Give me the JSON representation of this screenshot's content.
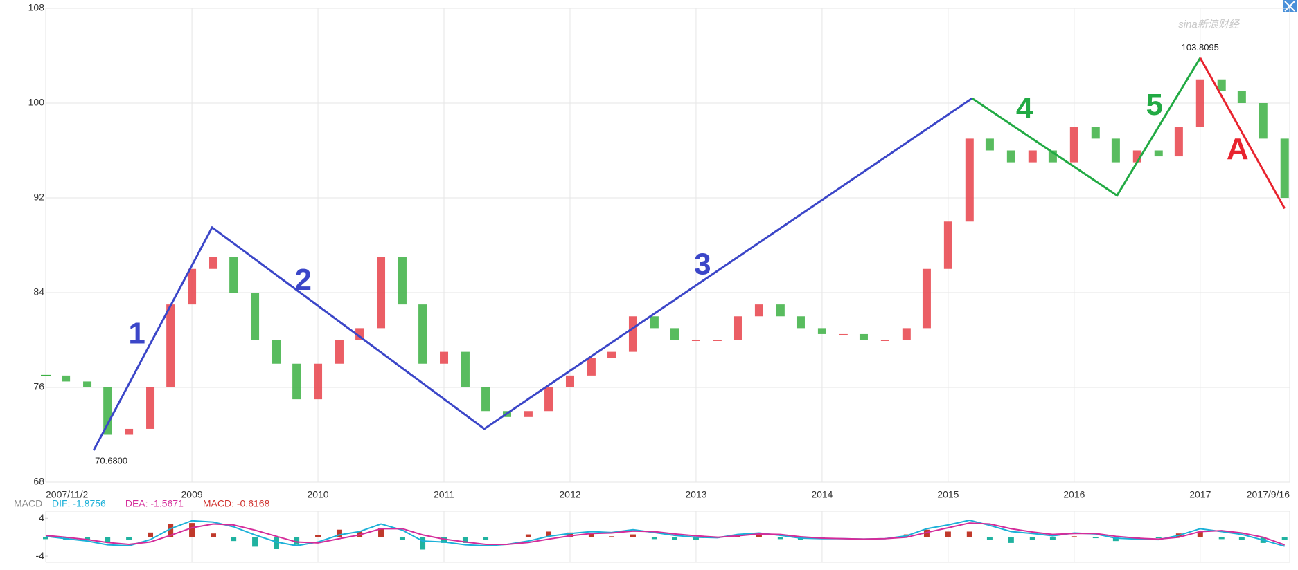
{
  "chart_data": {
    "type": "candlestick",
    "x": [
      2007.84,
      2008.0,
      2008.17,
      2008.33,
      2008.5,
      2008.67,
      2008.83,
      2009.0,
      2009.17,
      2009.33,
      2009.5,
      2009.67,
      2009.83,
      2010.0,
      2010.17,
      2010.33,
      2010.5,
      2010.67,
      2010.83,
      2011.0,
      2011.17,
      2011.33,
      2011.5,
      2011.67,
      2011.83,
      2012.0,
      2012.17,
      2012.33,
      2012.5,
      2012.67,
      2012.83,
      2013.0,
      2013.17,
      2013.33,
      2013.5,
      2013.67,
      2013.83,
      2014.0,
      2014.17,
      2014.33,
      2014.5,
      2014.67,
      2014.83,
      2015.0,
      2015.17,
      2015.33,
      2015.5,
      2015.67,
      2015.83,
      2016.0,
      2016.17,
      2016.33,
      2016.5,
      2016.67,
      2016.83,
      2017.0,
      2017.17,
      2017.33,
      2017.5,
      2017.67
    ],
    "series": [
      {
        "up_color": "#e8424a",
        "down_color": "#3cb043",
        "values": [
          77,
          76.5,
          76,
          72,
          72.5,
          76,
          83,
          86,
          87,
          84,
          80,
          78,
          75,
          78,
          80,
          81,
          87,
          83,
          78,
          79,
          76,
          74,
          73.5,
          74,
          76,
          77,
          78.5,
          79,
          82,
          81,
          80,
          80,
          80,
          82,
          83,
          82,
          81,
          80.5,
          80.5,
          80,
          80,
          81,
          86,
          90,
          97,
          96,
          95,
          96,
          95,
          98,
          97,
          95,
          96,
          95.5,
          98,
          102,
          101,
          100,
          97,
          92
        ]
      }
    ],
    "xlim": [
      2007.84,
      2017.71
    ],
    "xticks": [
      {
        "value": 2007.84,
        "label": "2007/11/2"
      },
      2009,
      2010,
      2011,
      2012,
      2013,
      2014,
      2015,
      2016,
      2017,
      {
        "value": 2017.71,
        "label": "2017/9/16"
      }
    ],
    "ylim": [
      68,
      108
    ],
    "yticks": [
      68,
      76,
      84,
      92,
      100,
      108
    ],
    "grid": true,
    "annotations": [
      {
        "value": 70.68,
        "label": "70.6800",
        "x": 2008.22
      },
      {
        "value": 103.8095,
        "label": "103.8095",
        "x": 2017.0
      }
    ],
    "waves": [
      {
        "color": "#3b46c8",
        "points": [
          [
            2008.22,
            70.68
          ],
          [
            2009.16,
            89.5
          ],
          [
            2011.32,
            72.5
          ],
          [
            2015.19,
            100.4
          ]
        ],
        "labels": [
          "1",
          "2",
          "3"
        ]
      },
      {
        "color": "#22aa44",
        "points": [
          [
            2015.19,
            100.4
          ],
          [
            2016.34,
            92.2
          ],
          [
            2017.0,
            103.81
          ]
        ],
        "labels": [
          "4",
          "5"
        ]
      },
      {
        "color": "#e8232e",
        "points": [
          [
            2017.0,
            103.81
          ],
          [
            2017.67,
            91.1
          ]
        ],
        "labels": [
          "A"
        ]
      }
    ],
    "watermark": "sina新浪财经",
    "macd": {
      "title": "MACD",
      "legend": [
        {
          "label": "DIF: -1.8756",
          "color": "#1ab0d8"
        },
        {
          "label": "DEA: -1.5671",
          "color": "#d42c9a"
        },
        {
          "label": "MACD: -0.6168",
          "color": "#d0312d"
        }
      ],
      "ylim": [
        -5.3,
        5.5
      ],
      "yticks": [
        4,
        -4
      ],
      "dif": {
        "color": "#1ab0d8",
        "values": [
          0.2,
          -0.3,
          -0.8,
          -1.6,
          -1.8,
          -0.5,
          1.8,
          3.5,
          3.2,
          2.2,
          0.5,
          -1.0,
          -1.8,
          -1.0,
          0.5,
          1.2,
          2.8,
          1.5,
          -0.8,
          -1.0,
          -1.6,
          -1.8,
          -1.5,
          -0.8,
          0.2,
          0.8,
          1.2,
          1.0,
          1.6,
          1.0,
          0.4,
          0.0,
          -0.1,
          0.6,
          0.9,
          0.4,
          -0.2,
          -0.3,
          -0.3,
          -0.4,
          -0.3,
          0.3,
          1.8,
          2.6,
          3.6,
          2.5,
          1.2,
          0.8,
          0.3,
          0.9,
          0.7,
          -0.2,
          -0.4,
          -0.5,
          0.4,
          1.8,
          1.2,
          0.6,
          -0.6,
          -1.9
        ]
      },
      "dea": {
        "color": "#d42c9a",
        "values": [
          0.4,
          0.0,
          -0.5,
          -1.1,
          -1.5,
          -1.0,
          0.4,
          2.0,
          2.8,
          2.6,
          1.5,
          0.2,
          -1.0,
          -1.2,
          -0.3,
          0.5,
          1.8,
          1.8,
          0.5,
          -0.4,
          -1.0,
          -1.5,
          -1.5,
          -1.1,
          -0.4,
          0.3,
          0.8,
          0.9,
          1.3,
          1.2,
          0.7,
          0.3,
          0.0,
          0.3,
          0.7,
          0.6,
          0.1,
          -0.2,
          -0.3,
          -0.4,
          -0.3,
          0.0,
          1.0,
          2.0,
          3.0,
          2.8,
          1.8,
          1.1,
          0.6,
          0.8,
          0.8,
          0.2,
          -0.2,
          -0.4,
          0.0,
          1.2,
          1.4,
          0.9,
          0.0,
          -1.6
        ]
      },
      "histogram": {
        "up_color": "#c0392b",
        "down_color": "#20b2a0",
        "values": [
          -0.4,
          -0.6,
          -0.6,
          -1.0,
          -0.6,
          1.0,
          2.8,
          3.0,
          0.8,
          -0.8,
          -2.0,
          -2.4,
          -1.6,
          0.4,
          1.6,
          1.4,
          2.0,
          -0.6,
          -2.6,
          -1.2,
          -1.2,
          -0.6,
          0.0,
          0.6,
          1.2,
          1.0,
          0.8,
          0.2,
          0.6,
          -0.4,
          -0.6,
          -0.6,
          -0.2,
          0.6,
          0.4,
          -0.4,
          -0.6,
          -0.2,
          0.0,
          0.0,
          0.0,
          0.6,
          1.6,
          1.2,
          1.2,
          -0.6,
          -1.2,
          -0.6,
          -0.6,
          0.2,
          -0.2,
          -0.8,
          -0.4,
          -0.2,
          0.8,
          1.2,
          -0.4,
          -0.6,
          -1.2,
          -0.6
        ]
      }
    }
  }
}
